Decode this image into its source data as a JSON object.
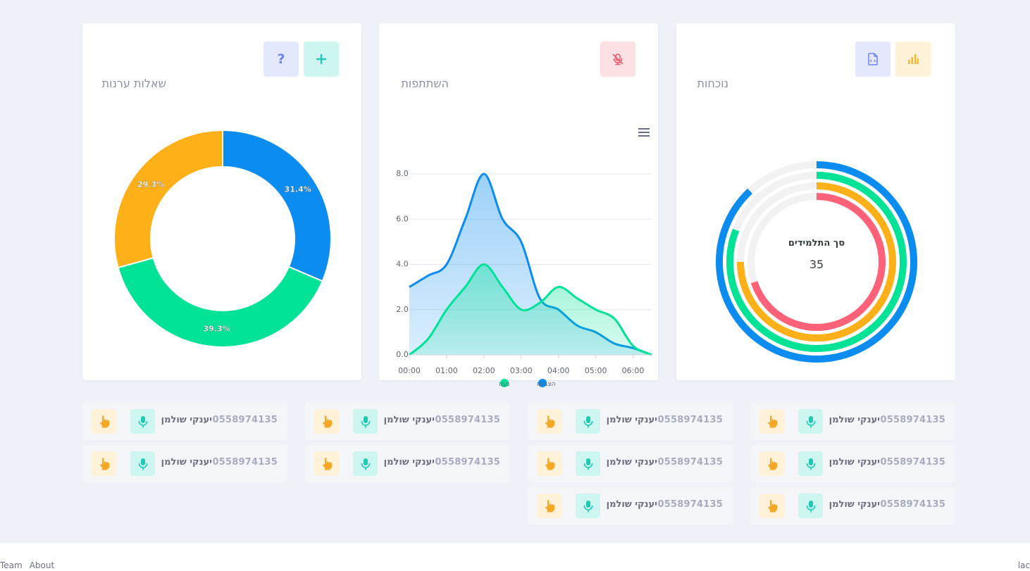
{
  "cards": {
    "attendance": {
      "title": "נוכחות",
      "center_label": "סך התלמידים",
      "center_value": "35"
    },
    "participation": {
      "title": "השתתפות"
    },
    "questions": {
      "title": "שאלות ערנות"
    }
  },
  "tiles": [
    {
      "phone": "0558974135",
      "name": "יענקי שולמן"
    },
    {
      "phone": "0558974135",
      "name": "יענקי שולמן"
    },
    {
      "phone": "0558974135",
      "name": "יענקי שולמן"
    },
    {
      "phone": "0558974135",
      "name": "יענקי שולמן"
    },
    {
      "phone": "0558974135",
      "name": "יענקי שולמן"
    },
    {
      "phone": "0558974135",
      "name": "יענקי שולמן"
    },
    {
      "phone": "0558974135",
      "name": "יענקי שולמן"
    },
    {
      "phone": "0558974135",
      "name": "יענקי שולמן"
    },
    {
      "phone": "0558974135",
      "name": "יענקי שולמן"
    },
    {
      "phone": "0558974135",
      "name": "יענקי שולמן"
    }
  ],
  "footer": {
    "team": "Team",
    "about": "About",
    "right": "lac"
  },
  "colors": {
    "blue": "#0a8cf0",
    "green": "#00e396",
    "yellow": "#feb019",
    "red": "#ff6178"
  },
  "chart_data": [
    {
      "type": "pie",
      "variant": "donut",
      "labels": [
        "31.4%",
        "39.3%",
        "29.3%"
      ],
      "values": [
        31.4,
        39.3,
        29.3
      ],
      "colors": [
        "#0a8cf0",
        "#00e396",
        "#feb019"
      ]
    },
    {
      "type": "area",
      "categories": [
        "00:00",
        "01:00",
        "02:00",
        "03:00",
        "04:00",
        "05:00",
        "06:00"
      ],
      "x": [
        0,
        0.5,
        1,
        1.5,
        2,
        2.5,
        3,
        3.5,
        4,
        4.5,
        5,
        5.5,
        6,
        6.5
      ],
      "ylim": [
        0,
        8
      ],
      "yticks": [
        "0.0",
        "2.0",
        "4.0",
        "6.0",
        "8.0"
      ],
      "series": [
        {
          "name": "הצביעו",
          "color": "#0a8cf0",
          "values": [
            3,
            3.5,
            4,
            6,
            8,
            6,
            5,
            2.5,
            2,
            1.3,
            1,
            0.5,
            0.3,
            0
          ]
        },
        {
          "name": "נענו",
          "color": "#00e396",
          "values": [
            0,
            0.7,
            2,
            3,
            4,
            3,
            2,
            2.3,
            3,
            2.5,
            2,
            1.6,
            0.4,
            0
          ]
        }
      ]
    },
    {
      "type": "radialBar",
      "values": [
        70,
        75,
        81,
        88
      ],
      "colors": [
        "#ff6178",
        "#feb019",
        "#00e396",
        "#0a8cf0"
      ]
    }
  ]
}
